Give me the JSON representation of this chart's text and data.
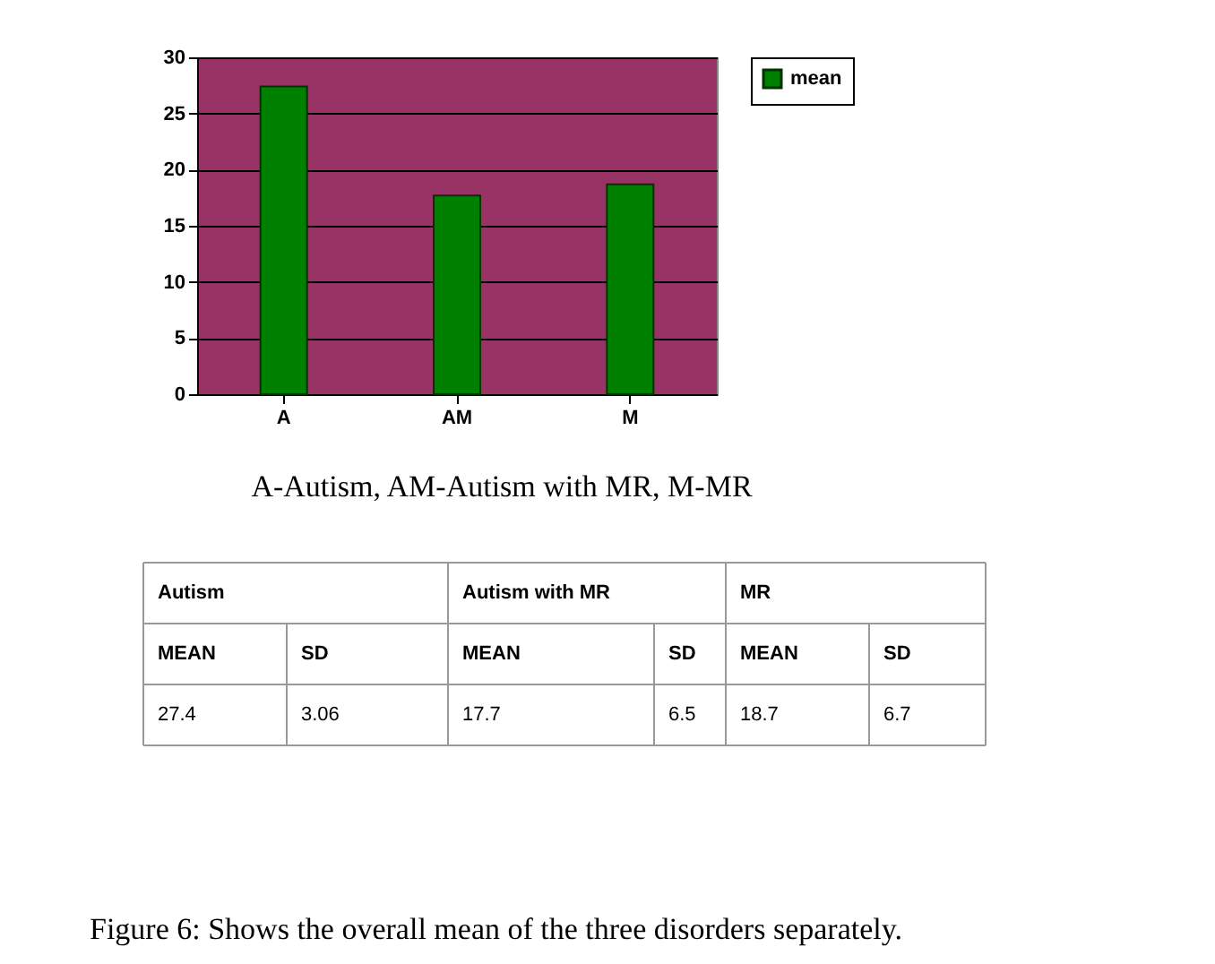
{
  "chart_data": {
    "type": "bar",
    "categories": [
      "A",
      "AM",
      "M"
    ],
    "series": [
      {
        "name": "mean",
        "color": "#008000",
        "values": [
          27.4,
          17.7,
          18.7
        ]
      }
    ],
    "ylim": [
      0,
      30
    ],
    "yticks": [
      0,
      5,
      10,
      15,
      20,
      25,
      30
    ],
    "grid": "y",
    "legend": "right",
    "annotations": [
      "A-Autism, AM-Autism with MR, M-MR",
      "Autism",
      "Autism with MR",
      "MR",
      "MEAN",
      "SD",
      "MEAN",
      "SD",
      "MEAN",
      "SD",
      "27.4",
      "3.06",
      "17.7",
      "6.5",
      "18.7",
      "6.7",
      "Figure 6: Shows the overall mean of the three disorders separately."
    ]
  }
}
